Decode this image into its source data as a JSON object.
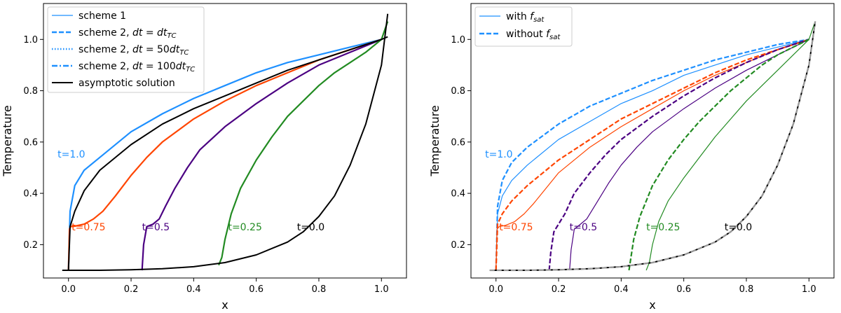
{
  "chart_data": [
    {
      "type": "line",
      "panel": "left",
      "xlabel": "x",
      "ylabel": "Temperature",
      "xlim": [
        -0.08,
        1.08
      ],
      "ylim": [
        0.07,
        1.14
      ],
      "xticks": [
        0.0,
        0.2,
        0.4,
        0.6,
        0.8,
        1.0
      ],
      "xtick_labels": [
        "0.0",
        "0.2",
        "0.4",
        "0.6",
        "0.8",
        "1.0"
      ],
      "yticks": [
        0.2,
        0.4,
        0.6,
        0.8,
        1.0
      ],
      "ytick_labels": [
        "0.2",
        "0.4",
        "0.6",
        "0.8",
        "1.0"
      ],
      "legend_position": "top-left",
      "legend": [
        {
          "label": "scheme 1",
          "style": "solid",
          "color": "#1e90ff"
        },
        {
          "label": "scheme 2, dt = dt_TC",
          "style": "dashed",
          "color": "#1e90ff"
        },
        {
          "label": "scheme 2, dt = 50dt_TC",
          "style": "dotted",
          "color": "#1e90ff"
        },
        {
          "label": "scheme 2, dt = 100dt_TC",
          "style": "dashdot",
          "color": "#1e90ff"
        },
        {
          "label": "asymptotic solution",
          "style": "solid",
          "color": "#000000"
        }
      ],
      "series": [
        {
          "name": "t=1.0",
          "color": "#1e90ff",
          "x": [
            0.0,
            0.005,
            0.02,
            0.05,
            0.1,
            0.2,
            0.3,
            0.4,
            0.5,
            0.6,
            0.7,
            0.8,
            0.9,
            1.0
          ],
          "y": [
            0.1,
            0.33,
            0.43,
            0.49,
            0.54,
            0.64,
            0.71,
            0.77,
            0.82,
            0.87,
            0.91,
            0.94,
            0.97,
            1.0
          ]
        },
        {
          "name": "t=0.75",
          "color": "#ff4500",
          "x": [
            0.0,
            0.003,
            0.006,
            0.02,
            0.05,
            0.08,
            0.11,
            0.15,
            0.2,
            0.25,
            0.3,
            0.4,
            0.5,
            0.6,
            0.7,
            0.8,
            0.9,
            1.0
          ],
          "y": [
            0.1,
            0.26,
            0.27,
            0.272,
            0.28,
            0.3,
            0.33,
            0.39,
            0.47,
            0.54,
            0.6,
            0.69,
            0.76,
            0.82,
            0.87,
            0.92,
            0.96,
            1.0
          ]
        },
        {
          "name": "t=0.5",
          "color": "#4b0082",
          "x": [
            0.235,
            0.24,
            0.25,
            0.27,
            0.29,
            0.31,
            0.34,
            0.38,
            0.42,
            0.5,
            0.6,
            0.7,
            0.8,
            0.9,
            1.0
          ],
          "y": [
            0.1,
            0.2,
            0.27,
            0.28,
            0.3,
            0.35,
            0.42,
            0.5,
            0.57,
            0.66,
            0.75,
            0.83,
            0.9,
            0.95,
            1.0
          ]
        },
        {
          "name": "t=0.25",
          "color": "#228b22",
          "x": [
            0.48,
            0.49,
            0.5,
            0.52,
            0.55,
            0.6,
            0.65,
            0.7,
            0.75,
            0.8,
            0.85,
            0.9,
            0.95,
            1.0,
            1.02
          ],
          "y": [
            0.12,
            0.15,
            0.22,
            0.32,
            0.42,
            0.53,
            0.62,
            0.7,
            0.76,
            0.82,
            0.87,
            0.91,
            0.95,
            1.0,
            1.07
          ]
        },
        {
          "name": "t=0.0",
          "color": "#000000",
          "x": [
            -0.02,
            0.0,
            0.1,
            0.2,
            0.3,
            0.4,
            0.5,
            0.6,
            0.7,
            0.75,
            0.8,
            0.85,
            0.9,
            0.95,
            1.0,
            1.02
          ],
          "y": [
            0.1,
            0.1,
            0.1,
            0.102,
            0.106,
            0.114,
            0.13,
            0.16,
            0.21,
            0.25,
            0.31,
            0.39,
            0.51,
            0.67,
            0.9,
            1.1
          ]
        },
        {
          "name": "asymptotic",
          "color": "#000000",
          "x": [
            0.0,
            0.005,
            0.02,
            0.05,
            0.1,
            0.2,
            0.3,
            0.4,
            0.5,
            0.6,
            0.7,
            0.8,
            0.9,
            1.0,
            1.02
          ],
          "y": [
            0.1,
            0.27,
            0.33,
            0.41,
            0.49,
            0.59,
            0.67,
            0.73,
            0.78,
            0.83,
            0.88,
            0.92,
            0.96,
            1.0,
            1.01
          ]
        }
      ],
      "annotations": [
        {
          "text": "t=1.0",
          "x": -0.035,
          "y": 0.54,
          "color": "#1e90ff"
        },
        {
          "text": "t=0.75",
          "x": 0.01,
          "y": 0.255,
          "color": "#ff4500"
        },
        {
          "text": "t=0.5",
          "x": 0.235,
          "y": 0.255,
          "color": "#4b0082"
        },
        {
          "text": "t=0.25",
          "x": 0.51,
          "y": 0.255,
          "color": "#228b22"
        },
        {
          "text": "t=0.0",
          "x": 0.73,
          "y": 0.255,
          "color": "#000000"
        }
      ]
    },
    {
      "type": "line",
      "panel": "right",
      "xlabel": "x",
      "ylabel": "Temperature",
      "xlim": [
        -0.08,
        1.08
      ],
      "ylim": [
        0.07,
        1.14
      ],
      "xticks": [
        0.0,
        0.2,
        0.4,
        0.6,
        0.8,
        1.0
      ],
      "xtick_labels": [
        "0.0",
        "0.2",
        "0.4",
        "0.6",
        "0.8",
        "1.0"
      ],
      "yticks": [
        0.2,
        0.4,
        0.6,
        0.8,
        1.0
      ],
      "ytick_labels": [
        "0.2",
        "0.4",
        "0.6",
        "0.8",
        "1.0"
      ],
      "legend_position": "top-left",
      "legend": [
        {
          "label": "with f_sat",
          "style": "solid",
          "color": "#1e90ff"
        },
        {
          "label": "without f_sat",
          "style": "dashed",
          "color": "#1e90ff"
        }
      ],
      "series": [
        {
          "name": "t=1.0 with",
          "color": "#1e90ff",
          "style": "solid",
          "x": [
            0.0,
            0.005,
            0.02,
            0.05,
            0.1,
            0.2,
            0.3,
            0.4,
            0.5,
            0.6,
            0.7,
            0.8,
            0.9,
            1.0
          ],
          "y": [
            0.1,
            0.32,
            0.39,
            0.45,
            0.51,
            0.61,
            0.68,
            0.75,
            0.8,
            0.86,
            0.9,
            0.94,
            0.97,
            1.0
          ]
        },
        {
          "name": "t=1.0 without",
          "color": "#1e90ff",
          "style": "dashed",
          "x": [
            0.0,
            0.005,
            0.02,
            0.05,
            0.1,
            0.2,
            0.3,
            0.4,
            0.5,
            0.6,
            0.7,
            0.8,
            0.9,
            1.0
          ],
          "y": [
            0.1,
            0.35,
            0.45,
            0.52,
            0.58,
            0.67,
            0.74,
            0.79,
            0.84,
            0.88,
            0.92,
            0.95,
            0.98,
            1.0
          ]
        },
        {
          "name": "t=0.75 with",
          "color": "#ff4500",
          "style": "solid",
          "x": [
            0.0,
            0.003,
            0.01,
            0.03,
            0.06,
            0.09,
            0.12,
            0.16,
            0.2,
            0.3,
            0.4,
            0.5,
            0.6,
            0.7,
            0.8,
            0.9,
            1.0
          ],
          "y": [
            0.1,
            0.26,
            0.27,
            0.275,
            0.29,
            0.32,
            0.36,
            0.42,
            0.48,
            0.58,
            0.66,
            0.73,
            0.8,
            0.86,
            0.91,
            0.96,
            1.0
          ]
        },
        {
          "name": "t=0.75 without",
          "color": "#ff4500",
          "style": "dashed",
          "x": [
            0.0,
            0.005,
            0.02,
            0.05,
            0.1,
            0.15,
            0.2,
            0.3,
            0.4,
            0.5,
            0.6,
            0.7,
            0.8,
            0.9,
            1.0
          ],
          "y": [
            0.1,
            0.28,
            0.32,
            0.37,
            0.43,
            0.48,
            0.53,
            0.61,
            0.69,
            0.75,
            0.81,
            0.87,
            0.92,
            0.96,
            1.0
          ]
        },
        {
          "name": "t=0.5 with",
          "color": "#4b0082",
          "style": "solid",
          "x": [
            0.235,
            0.24,
            0.25,
            0.27,
            0.29,
            0.32,
            0.36,
            0.4,
            0.45,
            0.5,
            0.6,
            0.7,
            0.8,
            0.9,
            1.0
          ],
          "y": [
            0.1,
            0.18,
            0.26,
            0.28,
            0.3,
            0.36,
            0.44,
            0.51,
            0.58,
            0.64,
            0.73,
            0.81,
            0.88,
            0.94,
            1.0
          ]
        },
        {
          "name": "t=0.5 without",
          "color": "#4b0082",
          "style": "dashed",
          "x": [
            0.17,
            0.175,
            0.185,
            0.2,
            0.22,
            0.25,
            0.3,
            0.35,
            0.4,
            0.5,
            0.6,
            0.7,
            0.8,
            0.9,
            1.0
          ],
          "y": [
            0.1,
            0.17,
            0.25,
            0.28,
            0.32,
            0.4,
            0.48,
            0.55,
            0.61,
            0.7,
            0.78,
            0.85,
            0.91,
            0.96,
            1.0
          ]
        },
        {
          "name": "t=0.25 with",
          "color": "#228b22",
          "style": "solid",
          "x": [
            0.48,
            0.49,
            0.5,
            0.52,
            0.55,
            0.6,
            0.65,
            0.7,
            0.75,
            0.8,
            0.85,
            0.9,
            0.95,
            1.0,
            1.02
          ],
          "y": [
            0.1,
            0.13,
            0.2,
            0.29,
            0.37,
            0.46,
            0.54,
            0.62,
            0.69,
            0.76,
            0.82,
            0.88,
            0.94,
            1.0,
            1.07
          ]
        },
        {
          "name": "t=0.25 without",
          "color": "#228b22",
          "style": "dashed",
          "x": [
            0.425,
            0.43,
            0.44,
            0.46,
            0.5,
            0.55,
            0.6,
            0.65,
            0.7,
            0.75,
            0.8,
            0.85,
            0.9,
            0.95,
            1.0
          ],
          "y": [
            0.1,
            0.14,
            0.22,
            0.31,
            0.43,
            0.53,
            0.61,
            0.68,
            0.74,
            0.8,
            0.85,
            0.9,
            0.94,
            0.97,
            1.0
          ]
        },
        {
          "name": "t=0.0 with",
          "color": "#000000",
          "style": "solid",
          "x": [
            -0.02,
            0.0,
            0.1,
            0.2,
            0.3,
            0.4,
            0.5,
            0.6,
            0.7,
            0.75,
            0.8,
            0.85,
            0.9,
            0.95,
            1.0,
            1.02
          ],
          "y": [
            0.1,
            0.1,
            0.1,
            0.102,
            0.106,
            0.114,
            0.13,
            0.16,
            0.21,
            0.25,
            0.31,
            0.39,
            0.51,
            0.67,
            0.9,
            1.07
          ]
        },
        {
          "name": "t=0.0 without",
          "color": "#999999",
          "style": "dashed",
          "x": [
            -0.02,
            0.0,
            0.1,
            0.2,
            0.3,
            0.4,
            0.5,
            0.6,
            0.7,
            0.75,
            0.8,
            0.85,
            0.9,
            0.95,
            1.0,
            1.02
          ],
          "y": [
            0.1,
            0.1,
            0.1,
            0.102,
            0.106,
            0.114,
            0.13,
            0.16,
            0.21,
            0.25,
            0.31,
            0.39,
            0.51,
            0.67,
            0.9,
            1.07
          ]
        }
      ],
      "annotations": [
        {
          "text": "t=1.0",
          "x": -0.035,
          "y": 0.54,
          "color": "#1e90ff"
        },
        {
          "text": "t=0.75",
          "x": 0.01,
          "y": 0.255,
          "color": "#ff4500"
        },
        {
          "text": "t=0.5",
          "x": 0.235,
          "y": 0.255,
          "color": "#4b0082"
        },
        {
          "text": "t=0.25",
          "x": 0.48,
          "y": 0.255,
          "color": "#228b22"
        },
        {
          "text": "t=0.0",
          "x": 0.73,
          "y": 0.255,
          "color": "#000000"
        }
      ]
    }
  ]
}
